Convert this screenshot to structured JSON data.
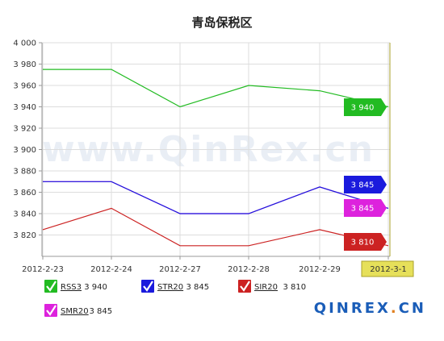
{
  "chart_data": {
    "type": "line",
    "title": "青岛保税区",
    "categories": [
      "2012-2-23",
      "2012-2-24",
      "2012-2-27",
      "2012-2-28",
      "2012-2-29",
      "2012-3-1"
    ],
    "highlighted_category": "2012-3-1",
    "ylim": [
      3800,
      4000
    ],
    "yticks": [
      3820,
      3840,
      3860,
      3880,
      3900,
      3920,
      3940,
      3960,
      3980,
      4000
    ],
    "ytick_labels": [
      "3 820",
      "3 840",
      "3 860",
      "3 880",
      "3 900",
      "3 920",
      "3 940",
      "3 960",
      "3 980",
      "4 000"
    ],
    "grid": true,
    "xlabel": "",
    "ylabel": "",
    "series": [
      {
        "name": "RSS3",
        "color": "#22bb22",
        "values": [
          3975,
          3975,
          3940,
          3960,
          3955,
          3940
        ],
        "end_label": "3 940"
      },
      {
        "name": "STR20",
        "color": "#1a1add",
        "values": [
          3870,
          3870,
          3840,
          3840,
          3865,
          3845
        ],
        "end_label": "3 845"
      },
      {
        "name": "SMR20",
        "color": "#dd22dd",
        "values": [
          3870,
          3870,
          3840,
          3840,
          3865,
          3845
        ],
        "end_label": "3 845"
      },
      {
        "name": "SIR20",
        "color": "#cc2222",
        "values": [
          3825,
          3845,
          3810,
          3810,
          3825,
          3810
        ],
        "end_label": "3 810"
      }
    ]
  },
  "legend": [
    {
      "name": "RSS3",
      "value": "3 940",
      "color": "#22bb22",
      "icon": "check-icon"
    },
    {
      "name": "STR20",
      "value": "3 845",
      "color": "#1a1add",
      "icon": "check-icon"
    },
    {
      "name": "SIR20",
      "value": "3 810",
      "color": "#cc2222",
      "icon": "check-icon"
    },
    {
      "name": "SMR20",
      "value": "3 845",
      "color": "#dd22dd",
      "icon": "check-icon"
    }
  ],
  "watermark": "www.QinRex.cn",
  "brand": {
    "text_main": "QINREX",
    "text_dot": ".",
    "text_tld": "CN"
  },
  "colors": {
    "axis": "#999999",
    "grid": "#dddddd",
    "highlight_tick_bg": "#e6e05a",
    "highlight_tick_border": "#aaa02a",
    "brand_blue": "#1a5db8",
    "brand_dot": "#e08020"
  }
}
